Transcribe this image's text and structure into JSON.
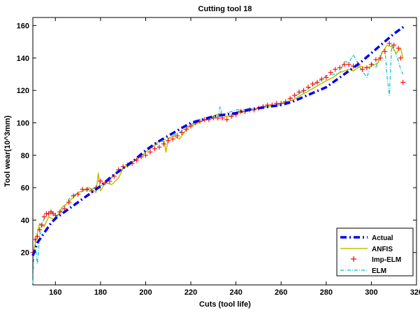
{
  "chart_data": {
    "type": "line",
    "title": "Cutting tool 18",
    "xlabel": "Cuts (tool life)",
    "ylabel": "Tool wear(10^3mm)",
    "xlim": [
      150,
      320
    ],
    "ylim": [
      0,
      165
    ],
    "xticks": [
      160,
      180,
      200,
      220,
      240,
      260,
      280,
      300,
      320
    ],
    "yticks": [
      20,
      40,
      60,
      80,
      100,
      120,
      140,
      160
    ],
    "grid": false,
    "legend_position": "bottom-right",
    "colors": {
      "actual": "#0000ee",
      "anfis": "#bfbf00",
      "imp_elm": "#ff0000",
      "elm": "#00bfbf"
    },
    "series": [
      {
        "name": "Actual",
        "style": "dashdot-thick",
        "x": [
          150,
          152,
          155,
          158,
          160,
          163,
          166,
          170,
          175,
          180,
          185,
          190,
          195,
          200,
          205,
          210,
          215,
          220,
          225,
          230,
          235,
          240,
          245,
          250,
          255,
          260,
          265,
          270,
          275,
          280,
          285,
          290,
          295,
          300,
          305,
          310,
          315
        ],
        "y": [
          18,
          26,
          32,
          38,
          41,
          44,
          47,
          51,
          56,
          61,
          67,
          72,
          77,
          83,
          88,
          92,
          96,
          100,
          102,
          104,
          105,
          106,
          108,
          109,
          110,
          111,
          113,
          116,
          119,
          122,
          127,
          132,
          137,
          143,
          149,
          155,
          160
        ]
      },
      {
        "name": "ANFIS",
        "style": "solid",
        "x": [
          150,
          151,
          152,
          153,
          155,
          157,
          160,
          163,
          165,
          168,
          170,
          172,
          175,
          178,
          179,
          180,
          182,
          185,
          188,
          190,
          193,
          195,
          198,
          200,
          203,
          205,
          208,
          209,
          210,
          212,
          215,
          218,
          220,
          225,
          230,
          233,
          235,
          238,
          240,
          245,
          250,
          255,
          260,
          265,
          270,
          275,
          280,
          283,
          286,
          290,
          292,
          295,
          298,
          300,
          303,
          305,
          307,
          309,
          311,
          313,
          314
        ],
        "y": [
          18,
          25,
          32,
          38,
          36,
          42,
          40,
          48,
          50,
          54,
          57,
          58,
          60,
          57,
          69,
          58,
          63,
          62,
          66,
          72,
          74,
          77,
          79,
          82,
          85,
          88,
          90,
          82,
          90,
          92,
          90,
          96,
          98,
          101,
          104,
          106,
          104,
          104,
          106,
          107,
          109,
          110,
          112,
          114,
          118,
          122,
          126,
          128,
          131,
          133,
          132,
          135,
          134,
          135,
          137,
          144,
          148,
          147,
          143,
          146,
          140
        ]
      },
      {
        "name": "Imp-ELM",
        "style": "plus-markers",
        "x": [
          150,
          151,
          152,
          153,
          154,
          155,
          156,
          157,
          158,
          159,
          160,
          162,
          164,
          166,
          168,
          170,
          172,
          174,
          176,
          178,
          180,
          182,
          184,
          186,
          188,
          190,
          192,
          194,
          196,
          198,
          200,
          202,
          204,
          206,
          208,
          210,
          212,
          214,
          216,
          218,
          220,
          222,
          224,
          226,
          228,
          230,
          232,
          234,
          236,
          238,
          240,
          242,
          244,
          246,
          248,
          250,
          252,
          254,
          256,
          258,
          260,
          262,
          264,
          266,
          268,
          270,
          272,
          274,
          276,
          278,
          280,
          282,
          284,
          286,
          288,
          290,
          292,
          294,
          296,
          298,
          300,
          302,
          304,
          306,
          308,
          310,
          312,
          313,
          314
        ],
        "y": [
          20,
          28,
          30,
          34,
          37,
          42,
          44,
          44,
          45,
          44,
          43,
          45,
          47,
          51,
          55,
          56,
          59,
          59,
          58,
          60,
          64,
          63,
          64,
          67,
          71,
          73,
          74,
          75,
          77,
          79,
          80,
          82,
          84,
          85,
          87,
          89,
          90,
          92,
          94,
          96,
          98,
          100,
          101,
          102,
          102,
          103,
          103,
          103,
          102,
          104,
          105,
          107,
          107,
          108,
          108,
          109,
          110,
          111,
          111,
          112,
          112,
          113,
          115,
          117,
          119,
          120,
          122,
          124,
          125,
          127,
          128,
          131,
          133,
          134,
          136,
          136,
          135,
          136,
          133,
          134,
          136,
          139,
          140,
          144,
          149,
          148,
          146,
          140,
          125
        ]
      },
      {
        "name": "ELM",
        "style": "dashdot-thin",
        "x": [
          150,
          150.5,
          151,
          152,
          153,
          154,
          156,
          158,
          160,
          163,
          166,
          170,
          173,
          176,
          180,
          184,
          188,
          192,
          196,
          200,
          204,
          208,
          212,
          216,
          220,
          224,
          228,
          232,
          233,
          234,
          236,
          240,
          244,
          248,
          252,
          256,
          260,
          264,
          268,
          272,
          276,
          280,
          284,
          286,
          288,
          290,
          292,
          295,
          298,
          300,
          302,
          304,
          306,
          307,
          308,
          309,
          310,
          311,
          312,
          313,
          314
        ],
        "y": [
          1,
          20,
          26,
          13,
          30,
          38,
          43,
          46,
          42,
          46,
          53,
          57,
          58,
          59,
          61,
          65,
          70,
          74,
          77,
          82,
          86,
          89,
          92,
          95,
          99,
          101,
          102,
          104,
          110,
          104,
          106,
          108,
          108,
          109,
          110,
          111,
          111,
          115,
          118,
          121,
          125,
          129,
          130,
          131,
          138,
          137,
          142,
          134,
          128,
          137,
          134,
          142,
          146,
          128,
          117,
          148,
          146,
          142,
          138,
          133,
          130
        ]
      }
    ]
  }
}
